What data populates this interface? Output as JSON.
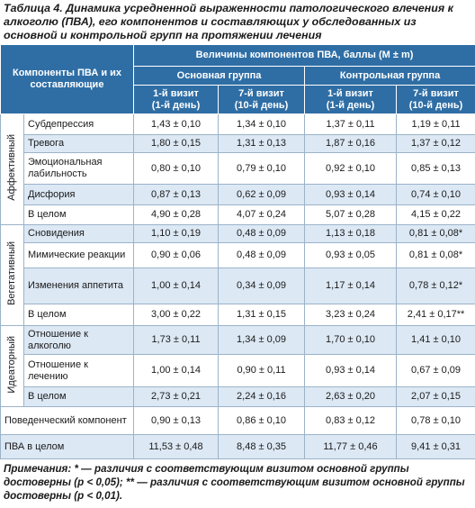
{
  "title": {
    "label": "Таблица 4.",
    "text": "Динамика усредненной выраженности патологического влечения к алкоголю (ПВА), его компонентов и составляющих у обследованных из основной и контрольной групп на протяжении лечения"
  },
  "table": {
    "header": {
      "measure": "Компоненты ПВА и их составляющие",
      "span": "Величины компонентов ПВА, баллы (M ± m)",
      "groups": [
        "Основная группа",
        "Контрольная группа"
      ],
      "visits": [
        {
          "visit": "1-й визит",
          "day": "(1-й день)"
        },
        {
          "visit": "7-й визит",
          "day": "(10-й день)"
        },
        {
          "visit": "1-й визит",
          "day": "(1-й день)"
        },
        {
          "visit": "7-й визит",
          "day": "(10-й день)"
        }
      ]
    },
    "sections": [
      {
        "label": "Аффективный",
        "rows": [
          {
            "name": "Субдепрессия",
            "cells": [
              "1,43 ± 0,10",
              "1,34 ± 0,10",
              "1,37 ± 0,11",
              "1,19 ± 0,11"
            ]
          },
          {
            "name": "Тревога",
            "cells": [
              "1,80 ± 0,15",
              "1,31 ± 0,13",
              "1,87 ± 0,16",
              "1,37 ± 0,12"
            ]
          },
          {
            "name": "Эмоциональная лабильность",
            "cells": [
              "0,80 ± 0,10",
              "0,79 ± 0,10",
              "0,92 ± 0,10",
              "0,85 ± 0,13"
            ]
          },
          {
            "name": "Дисфория",
            "cells": [
              "0,87 ± 0,13",
              "0,62 ± 0,09",
              "0,93 ± 0,14",
              "0,74 ± 0,10"
            ]
          },
          {
            "name": "В целом",
            "cells": [
              "4,90 ± 0,28",
              "4,07 ± 0,24",
              "5,07 ± 0,28",
              "4,15 ± 0,22"
            ]
          }
        ]
      },
      {
        "label": "Вегетативный",
        "rows": [
          {
            "name": "Сновидения",
            "cells": [
              "1,10 ± 0,19",
              "0,48 ± 0,09",
              "1,13 ± 0,18",
              "0,81 ± 0,08*"
            ]
          },
          {
            "name": "Мимические реакции",
            "cells": [
              "0,90 ± 0,06",
              "0,48 ± 0,09",
              "0,93 ± 0,05",
              "0,81 ± 0,08*"
            ]
          },
          {
            "name": "Изменения аппетита",
            "cells": [
              "1,00 ± 0,14",
              "0,34 ± 0,09",
              "1,17 ± 0,14",
              "0,78 ± 0,12*"
            ]
          },
          {
            "name": "В целом",
            "cells": [
              "3,00 ± 0,22",
              "1,31 ± 0,15",
              "3,23 ± 0,24",
              "2,41 ± 0,17**"
            ]
          }
        ]
      },
      {
        "label": "Идеаторный",
        "rows": [
          {
            "name": "Отношение к алкоголю",
            "cells": [
              "1,73 ± 0,11",
              "1,34 ± 0,09",
              "1,70 ± 0,10",
              "1,41 ± 0,10"
            ]
          },
          {
            "name": "Отношение к лечению",
            "cells": [
              "1,00 ± 0,14",
              "0,90 ± 0,11",
              "0,93 ± 0,14",
              "0,67 ± 0,09"
            ]
          },
          {
            "name": "В целом",
            "cells": [
              "2,73 ± 0,21",
              "2,24 ± 0,16",
              "2,63 ± 0,20",
              "2,07 ± 0,15"
            ]
          }
        ]
      }
    ],
    "totals": [
      {
        "name": "Поведенческий компонент",
        "cells": [
          "0,90 ± 0,13",
          "0,86 ± 0,10",
          "0,83 ± 0,12",
          "0,78 ± 0,10"
        ]
      },
      {
        "name": "ПВА в целом",
        "cells": [
          "11,53 ± 0,48",
          "8,48 ± 0,35",
          "11,77 ± 0,46",
          "9,41 ± 0,31"
        ]
      }
    ]
  },
  "notes": {
    "label": "Примечания:",
    "text": "* — различия с соответствующим визитом основной группы достоверны (p < 0,05); ** — различия с соответствующим визитом основной группы достоверны (p < 0,01)."
  }
}
